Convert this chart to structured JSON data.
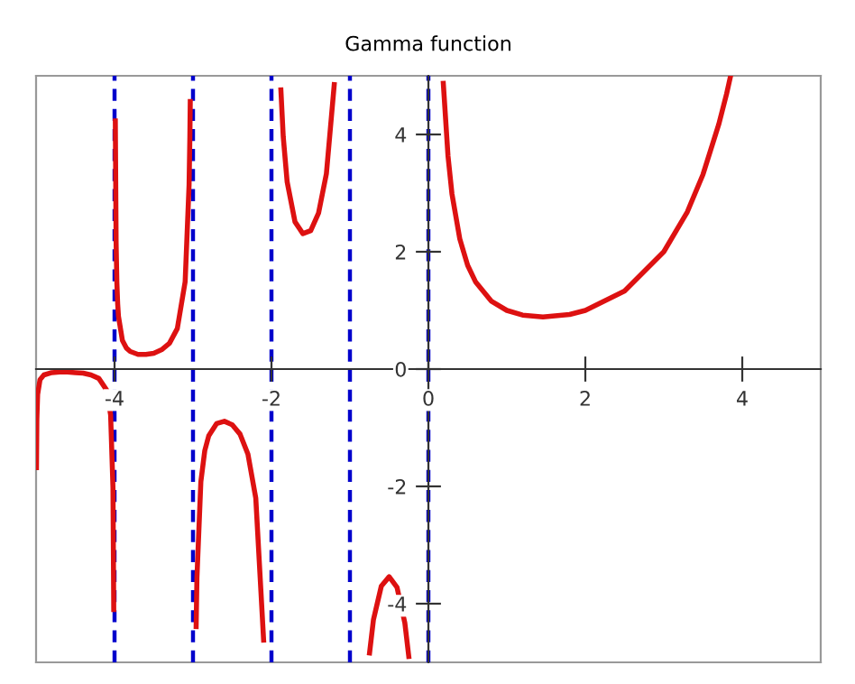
{
  "chart_data": {
    "type": "line",
    "title": "Gamma function",
    "series": [
      {
        "color": "#dd1111",
        "x": [
          -4.995,
          -4.99,
          -4.98,
          -4.95,
          -4.9,
          -4.8,
          -4.7,
          -4.6,
          -4.5,
          -4.4,
          -4.3,
          -4.2,
          -4.1,
          -4.05,
          -4.02,
          -4.01,
          -4,
          -3.99,
          -3.98,
          -3.97,
          -3.96,
          -3.95,
          -3.9,
          -3.85,
          -3.8,
          -3.7,
          -3.6,
          -3.5,
          -3.4,
          -3.3,
          -3.2,
          -3.1,
          -3.05,
          -3.04,
          -3.035,
          -3,
          -2.96,
          -2.95,
          -2.9,
          -2.85,
          -2.8,
          -2.7,
          -2.6,
          -2.5,
          -2.4,
          -2.3,
          -2.2,
          -2.1,
          -2,
          -1.88,
          -1.85,
          -1.8,
          -1.7,
          -1.6,
          -1.5,
          -1.4,
          -1.3,
          -1.2,
          -1,
          -0.75,
          -0.7,
          -0.6,
          -0.5,
          -0.4,
          -0.3,
          -0.25,
          0,
          0.19,
          0.25,
          0.3,
          0.4,
          0.5,
          0.6,
          0.8,
          1,
          1.2,
          1.46,
          1.8,
          2,
          2.5,
          3,
          3.3,
          3.5,
          3.7,
          3.8,
          3.85
        ],
        "values": [
          -1.68,
          -0.85,
          -0.43,
          -0.18,
          -0.1,
          -0.06,
          -0.05,
          -0.05,
          -0.06,
          -0.07,
          -0.1,
          -0.16,
          -0.36,
          -0.78,
          -2.02,
          -4.1,
          null,
          4.23,
          2.15,
          1.46,
          1.11,
          0.9,
          0.49,
          0.36,
          0.3,
          0.25,
          0.25,
          0.27,
          0.33,
          0.44,
          0.69,
          1.49,
          3.14,
          3.96,
          4.56,
          null,
          -4.39,
          -3.56,
          -1.92,
          -1.39,
          -1.14,
          -0.93,
          -0.89,
          -0.95,
          -1.11,
          -1.45,
          -2.2,
          -4.62,
          null,
          4.76,
          3.96,
          3.19,
          2.51,
          2.31,
          2.36,
          2.66,
          3.33,
          4.85,
          null,
          -4.84,
          -4.27,
          -3.7,
          -3.54,
          -3.72,
          -4.33,
          -4.9,
          null,
          4.87,
          3.63,
          2.99,
          2.22,
          1.77,
          1.49,
          1.16,
          1,
          0.92,
          0.89,
          0.93,
          1,
          1.33,
          2,
          2.68,
          3.32,
          4.17,
          4.69,
          4.99
        ]
      }
    ],
    "xlim": [
      -5,
      5
    ],
    "ylim": [
      -5,
      5
    ],
    "xticks": [
      -4,
      -2,
      0,
      2,
      4
    ],
    "yticks": [
      -4,
      -2,
      0,
      2,
      4
    ],
    "ref_lines": [
      {
        "axis": "x",
        "value": -4,
        "color": "#0000cc",
        "line_style": "dashed"
      },
      {
        "axis": "x",
        "value": -3,
        "color": "#0000cc",
        "line_style": "dashed"
      },
      {
        "axis": "x",
        "value": -2,
        "color": "#0000cc",
        "line_style": "dashed"
      },
      {
        "axis": "x",
        "value": -1,
        "color": "#0000cc",
        "line_style": "dashed"
      },
      {
        "axis": "x",
        "value": 0,
        "color": "#0000cc",
        "line_style": "dashed"
      }
    ],
    "grid": false,
    "marker": "none",
    "line_style": "solid"
  }
}
